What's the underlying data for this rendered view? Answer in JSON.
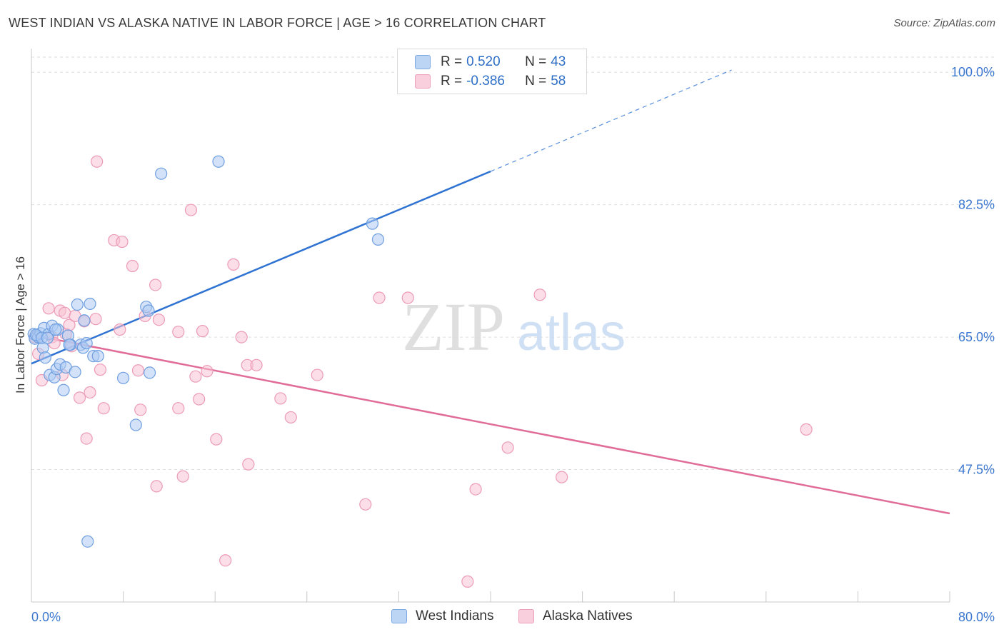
{
  "title": "WEST INDIAN VS ALASKA NATIVE IN LABOR FORCE | AGE > 16 CORRELATION CHART",
  "source": "Source: ZipAtlas.com",
  "watermark": {
    "zip": "ZIP",
    "atlas": "atlas"
  },
  "colors": {
    "blue_fill": "#aecbf2",
    "blue_stroke": "#6f9fe0",
    "blue_line": "#2e72d2",
    "pink_fill": "#f7c2d3",
    "pink_stroke": "#ec9bb6",
    "pink_line": "#e06c97",
    "tick_label": "#3b78d0",
    "grid": "#dddddd"
  },
  "legend": {
    "rows": [
      {
        "r_label": "R =",
        "r_value": "0.520",
        "n_label": "N =",
        "n_value": "43"
      },
      {
        "r_label": "R =",
        "r_value": "-0.386",
        "n_label": "N =",
        "n_value": "58"
      }
    ]
  },
  "chart_data": {
    "type": "scatter",
    "title": "WEST INDIAN VS ALASKA NATIVE IN LABOR FORCE | AGE > 16 CORRELATION CHART",
    "xlabel": "",
    "ylabel": "In Labor Force | Age > 16",
    "xlim": [
      0,
      80
    ],
    "ylim": [
      30,
      102
    ],
    "x_tick_labels": [
      "0.0%",
      "80.0%"
    ],
    "y_ticks": [
      47.5,
      65.0,
      82.5,
      100.0
    ],
    "y_tick_labels": [
      "47.5%",
      "65.0%",
      "82.5%",
      "100.0%"
    ],
    "grid": true,
    "legend_position": "top-center",
    "series": [
      {
        "name": "West Indians",
        "color": "#aecbf2",
        "points": [
          [
            0.2,
            65.4
          ],
          [
            0.3,
            64.8
          ],
          [
            0.5,
            65.2
          ],
          [
            0.6,
            65.0
          ],
          [
            0.8,
            65.5
          ],
          [
            1.0,
            63.6
          ],
          [
            1.1,
            66.2
          ],
          [
            1.2,
            62.3
          ],
          [
            1.5,
            65.4
          ],
          [
            1.6,
            60.0
          ],
          [
            1.8,
            66.5
          ],
          [
            2.0,
            59.7
          ],
          [
            2.2,
            60.8
          ],
          [
            2.3,
            66.0
          ],
          [
            2.5,
            61.4
          ],
          [
            2.8,
            58.0
          ],
          [
            3.0,
            61.0
          ],
          [
            3.2,
            65.2
          ],
          [
            3.4,
            64.0
          ],
          [
            3.8,
            60.4
          ],
          [
            4.0,
            69.3
          ],
          [
            4.3,
            64.0
          ],
          [
            4.5,
            63.6
          ],
          [
            4.6,
            67.2
          ],
          [
            4.8,
            64.2
          ],
          [
            5.1,
            69.4
          ],
          [
            5.4,
            62.5
          ],
          [
            5.8,
            62.5
          ],
          [
            8.0,
            59.6
          ],
          [
            9.1,
            53.4
          ],
          [
            10.0,
            69.0
          ],
          [
            10.2,
            68.5
          ],
          [
            10.3,
            60.3
          ],
          [
            11.3,
            86.6
          ],
          [
            16.3,
            88.2
          ],
          [
            29.7,
            80.0
          ],
          [
            30.2,
            77.9
          ],
          [
            4.9,
            38.0
          ],
          [
            3.3,
            64.0
          ],
          [
            0.4,
            65.3
          ],
          [
            0.9,
            64.9
          ],
          [
            1.4,
            64.9
          ],
          [
            2.1,
            66.0
          ]
        ],
        "trend": {
          "x": [
            0,
            40
          ],
          "y": [
            61.5,
            86.9
          ],
          "dashed_to": {
            "x": [
              40,
              61
            ],
            "y": [
              86.9,
              100.3
            ]
          }
        }
      },
      {
        "name": "Alaska Natives",
        "color": "#f7c2d3",
        "points": [
          [
            0.3,
            65.0
          ],
          [
            0.6,
            62.8
          ],
          [
            0.9,
            59.3
          ],
          [
            1.5,
            68.8
          ],
          [
            1.8,
            65.0
          ],
          [
            2.0,
            64.2
          ],
          [
            2.5,
            68.5
          ],
          [
            2.7,
            60.0
          ],
          [
            2.9,
            68.2
          ],
          [
            3.0,
            65.4
          ],
          [
            3.3,
            66.6
          ],
          [
            3.5,
            63.8
          ],
          [
            3.8,
            67.8
          ],
          [
            4.2,
            57.0
          ],
          [
            4.6,
            67.1
          ],
          [
            4.8,
            51.6
          ],
          [
            5.1,
            57.7
          ],
          [
            5.6,
            67.4
          ],
          [
            6.0,
            60.7
          ],
          [
            6.3,
            55.6
          ],
          [
            5.7,
            88.2
          ],
          [
            7.2,
            77.8
          ],
          [
            7.9,
            77.6
          ],
          [
            7.7,
            66.0
          ],
          [
            8.8,
            74.4
          ],
          [
            9.3,
            60.6
          ],
          [
            9.5,
            55.4
          ],
          [
            9.9,
            67.8
          ],
          [
            10.8,
            71.9
          ],
          [
            11.1,
            67.3
          ],
          [
            10.9,
            45.3
          ],
          [
            12.8,
            65.7
          ],
          [
            12.8,
            55.6
          ],
          [
            13.2,
            46.6
          ],
          [
            13.9,
            81.8
          ],
          [
            14.3,
            59.8
          ],
          [
            14.6,
            56.8
          ],
          [
            14.9,
            65.8
          ],
          [
            15.3,
            60.5
          ],
          [
            16.1,
            51.5
          ],
          [
            16.9,
            35.5
          ],
          [
            17.6,
            74.6
          ],
          [
            18.3,
            65.0
          ],
          [
            18.9,
            48.2
          ],
          [
            18.8,
            61.3
          ],
          [
            19.6,
            61.3
          ],
          [
            21.7,
            56.9
          ],
          [
            22.6,
            54.4
          ],
          [
            24.9,
            60.0
          ],
          [
            29.1,
            42.9
          ],
          [
            30.3,
            70.2
          ],
          [
            32.8,
            70.2
          ],
          [
            38.0,
            32.7
          ],
          [
            38.7,
            44.9
          ],
          [
            41.5,
            50.4
          ],
          [
            44.3,
            70.6
          ],
          [
            46.2,
            46.5
          ],
          [
            67.5,
            52.8
          ]
        ],
        "trend": {
          "x": [
            0,
            80
          ],
          "y": [
            65.3,
            41.7
          ]
        }
      }
    ]
  },
  "bottom_legend": [
    {
      "label": "West Indians"
    },
    {
      "label": "Alaska Natives"
    }
  ]
}
